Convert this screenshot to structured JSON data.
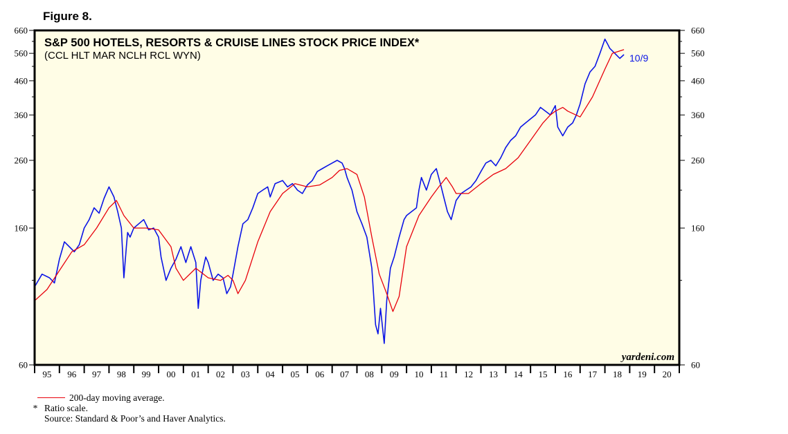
{
  "figure_label": "Figure 8.",
  "chart_data": {
    "type": "line",
    "title": "S&P 500 HOTELS, RESORTS & CRUISE LINES STOCK PRICE INDEX*",
    "subtitle": "(CCL HLT MAR NCLH RCL WYN)",
    "scale": "log",
    "ylim": [
      60,
      660
    ],
    "yticks": [
      60,
      160,
      260,
      360,
      460,
      560,
      660
    ],
    "xlim": [
      1995.0,
      2021.0
    ],
    "xtick_labels": [
      "95",
      "96",
      "97",
      "98",
      "99",
      "00",
      "01",
      "02",
      "03",
      "04",
      "05",
      "06",
      "07",
      "08",
      "09",
      "10",
      "11",
      "12",
      "13",
      "14",
      "15",
      "16",
      "17",
      "18",
      "19",
      "20"
    ],
    "last_date_label": "10/9",
    "watermark": "yardeni.com",
    "grid": false,
    "colors": {
      "index": "#0a14e6",
      "ma": "#e8000b",
      "plot_bg": "#fffde6"
    },
    "series": [
      {
        "name": "",
        "x": [
          1995.0,
          1995.3,
          1995.6,
          1995.8,
          1996.0,
          1996.2,
          1996.4,
          1996.6,
          1996.8,
          1997.0,
          1997.2,
          1997.4,
          1997.6,
          1997.8,
          1998.0,
          1998.2,
          1998.35,
          1998.5,
          1998.6,
          1998.7,
          1998.75,
          1998.85,
          1999.0,
          1999.2,
          1999.4,
          1999.6,
          1999.8,
          2000.0,
          2000.1,
          2000.3,
          2000.5,
          2000.7,
          2000.9,
          2001.1,
          2001.3,
          2001.5,
          2001.6,
          2001.7,
          2001.75,
          2001.8,
          2001.9,
          2002.0,
          2002.2,
          2002.4,
          2002.6,
          2002.75,
          2002.9,
          2003.0,
          2003.2,
          2003.4,
          2003.6,
          2003.8,
          2004.0,
          2004.2,
          2004.4,
          2004.5,
          2004.7,
          2005.0,
          2005.2,
          2005.4,
          2005.6,
          2005.8,
          2006.0,
          2006.2,
          2006.4,
          2006.6,
          2006.8,
          2007.0,
          2007.2,
          2007.4,
          2007.5,
          2007.6,
          2007.8,
          2008.0,
          2008.2,
          2008.4,
          2008.6,
          2008.75,
          2008.85,
          2008.95,
          2009.1,
          2009.2,
          2009.35,
          2009.5,
          2009.7,
          2009.9,
          2010.0,
          2010.2,
          2010.4,
          2010.5,
          2010.6,
          2010.8,
          2011.0,
          2011.2,
          2011.4,
          2011.5,
          2011.65,
          2011.8,
          2012.0,
          2012.2,
          2012.4,
          2012.6,
          2012.8,
          2013.0,
          2013.2,
          2013.4,
          2013.6,
          2013.8,
          2014.0,
          2014.2,
          2014.4,
          2014.6,
          2014.8,
          2015.0,
          2015.2,
          2015.4,
          2015.6,
          2015.8,
          2016.0,
          2016.1,
          2016.3,
          2016.5,
          2016.7,
          2016.85,
          2017.0,
          2017.2,
          2017.4,
          2017.6,
          2017.8,
          2018.0,
          2018.1,
          2018.2,
          2018.4,
          2018.6,
          2018.77
        ],
        "y": [
          105,
          115,
          112,
          108,
          128,
          145,
          140,
          135,
          142,
          160,
          170,
          185,
          178,
          198,
          215,
          200,
          180,
          160,
          112,
          140,
          155,
          150,
          160,
          165,
          170,
          158,
          160,
          150,
          130,
          110,
          120,
          128,
          140,
          125,
          140,
          125,
          90,
          110,
          115,
          120,
          130,
          125,
          110,
          115,
          112,
          100,
          105,
          115,
          140,
          165,
          170,
          185,
          205,
          210,
          215,
          200,
          220,
          225,
          215,
          220,
          210,
          205,
          218,
          225,
          240,
          245,
          250,
          255,
          260,
          255,
          245,
          230,
          210,
          180,
          165,
          150,
          120,
          80,
          75,
          90,
          70,
          95,
          120,
          130,
          150,
          170,
          175,
          180,
          185,
          210,
          230,
          210,
          235,
          245,
          215,
          200,
          180,
          170,
          195,
          205,
          210,
          215,
          225,
          240,
          255,
          260,
          250,
          265,
          285,
          300,
          310,
          330,
          340,
          350,
          360,
          380,
          370,
          360,
          385,
          330,
          310,
          330,
          340,
          360,
          390,
          450,
          490,
          510,
          560,
          620,
          600,
          580,
          560,
          540,
          555
        ]
      },
      {
        "name": "200-day moving average.",
        "x": [
          1995.0,
          1995.5,
          1996.0,
          1996.5,
          1997.0,
          1997.5,
          1998.0,
          1998.3,
          1998.6,
          1999.0,
          1999.5,
          2000.0,
          2000.5,
          2000.7,
          2001.0,
          2001.5,
          2002.0,
          2002.5,
          2002.8,
          2003.0,
          2003.2,
          2003.5,
          2004.0,
          2004.5,
          2005.0,
          2005.5,
          2006.0,
          2006.5,
          2007.0,
          2007.3,
          2007.6,
          2008.0,
          2008.3,
          2008.6,
          2008.9,
          2009.2,
          2009.45,
          2009.7,
          2010.0,
          2010.5,
          2011.0,
          2011.3,
          2011.6,
          2011.85,
          2012.0,
          2012.5,
          2013.0,
          2013.5,
          2014.0,
          2014.5,
          2015.0,
          2015.5,
          2015.8,
          2016.0,
          2016.3,
          2016.5,
          2017.0,
          2017.5,
          2018.0,
          2018.3,
          2018.77
        ],
        "y": [
          95,
          103,
          118,
          135,
          142,
          160,
          185,
          195,
          175,
          160,
          160,
          158,
          140,
          120,
          110,
          120,
          112,
          110,
          114,
          110,
          100,
          110,
          145,
          180,
          205,
          220,
          215,
          218,
          230,
          242,
          245,
          235,
          200,
          150,
          115,
          100,
          88,
          98,
          140,
          175,
          200,
          215,
          230,
          215,
          205,
          205,
          220,
          235,
          245,
          265,
          300,
          340,
          360,
          370,
          380,
          370,
          355,
          410,
          500,
          560,
          575
        ]
      }
    ]
  },
  "footnotes": {
    "legend_ma": "200-day moving average.",
    "star": "*",
    "ratio": "Ratio scale.",
    "source": "Source: Standard & Poor’s and Haver Analytics."
  }
}
